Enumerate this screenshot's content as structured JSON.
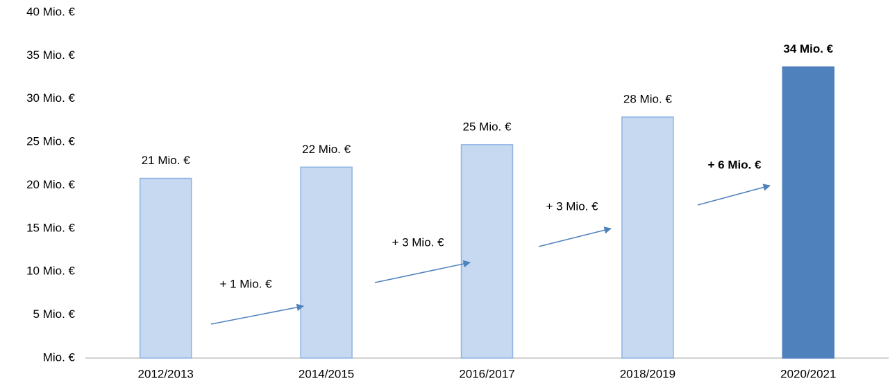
{
  "chart_data": {
    "type": "bar",
    "categories": [
      "2012/2013",
      "2014/2015",
      "2016/2017",
      "2018/2019",
      "2020/2021"
    ],
    "values": [
      20.8,
      22.1,
      24.7,
      27.9,
      33.7
    ],
    "value_labels": [
      "21 Mio. €",
      "22 Mio. €",
      "25 Mio. €",
      "28 Mio. €",
      "34 Mio. €"
    ],
    "value_label_bold": [
      false,
      false,
      false,
      false,
      true
    ],
    "colors": [
      "#c6d9f1",
      "#c6d9f1",
      "#c6d9f1",
      "#c6d9f1",
      "#4f81bd"
    ],
    "edge_colors": [
      "#8db3e2",
      "#8db3e2",
      "#8db3e2",
      "#8db3e2",
      "#4f81bd"
    ],
    "ylim": [
      0,
      40
    ],
    "yticks": [
      {
        "value": 0,
        "label": "Mio. €"
      },
      {
        "value": 5,
        "label": "5 Mio. €"
      },
      {
        "value": 10,
        "label": "10 Mio. €"
      },
      {
        "value": 15,
        "label": "15 Mio. €"
      },
      {
        "value": 20,
        "label": "20 Mio. €"
      },
      {
        "value": 25,
        "label": "25 Mio. €"
      },
      {
        "value": 30,
        "label": "30 Mio. €"
      },
      {
        "value": 35,
        "label": "35 Mio. €"
      },
      {
        "value": 40,
        "label": "40 Mio. €"
      }
    ],
    "grid": false,
    "annotations": [
      {
        "text": "+ 1 Mio. €",
        "bold": false
      },
      {
        "text": "+ 3 Mio. €",
        "bold": false
      },
      {
        "text": "+ 3 Mio. €",
        "bold": false
      },
      {
        "text": "+ 6 Mio. €",
        "bold": true
      }
    ],
    "arrow_color": "#4f81bd"
  }
}
